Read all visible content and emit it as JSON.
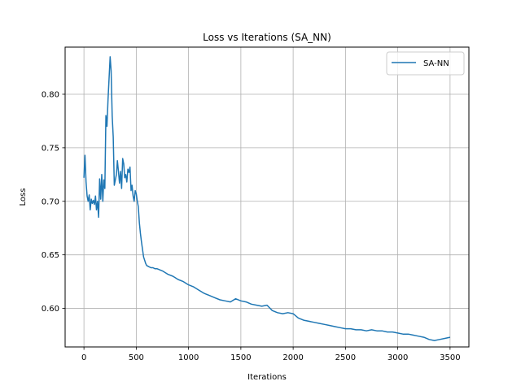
{
  "chart_data": {
    "type": "line",
    "title": "Loss vs Iterations (SA_NN)",
    "xlabel": "Iterations",
    "ylabel": "Loss",
    "xlim": [
      -180,
      3680
    ],
    "ylim": [
      0.564,
      0.844
    ],
    "xticks": [
      0,
      500,
      1000,
      1500,
      2000,
      2500,
      3000,
      3500
    ],
    "yticks": [
      0.6,
      0.65,
      0.7,
      0.75,
      0.8
    ],
    "ytick_labels": [
      "0.60",
      "0.65",
      "0.70",
      "0.75",
      "0.80"
    ],
    "grid": true,
    "legend_position": "top-right",
    "series": [
      {
        "name": "SA-NN",
        "color": "#1f77b4",
        "x": [
          0,
          10,
          20,
          30,
          40,
          50,
          60,
          70,
          80,
          90,
          100,
          110,
          120,
          130,
          140,
          150,
          160,
          170,
          180,
          190,
          200,
          210,
          220,
          230,
          240,
          250,
          260,
          270,
          280,
          290,
          300,
          310,
          320,
          330,
          340,
          350,
          360,
          370,
          380,
          390,
          400,
          410,
          420,
          430,
          440,
          450,
          460,
          470,
          480,
          490,
          500,
          510,
          520,
          530,
          540,
          550,
          560,
          570,
          580,
          590,
          600,
          620,
          640,
          660,
          680,
          700,
          750,
          800,
          850,
          900,
          950,
          1000,
          1050,
          1100,
          1150,
          1200,
          1250,
          1300,
          1350,
          1400,
          1450,
          1500,
          1550,
          1600,
          1650,
          1700,
          1750,
          1800,
          1850,
          1900,
          1950,
          2000,
          2050,
          2100,
          2150,
          2200,
          2250,
          2300,
          2350,
          2400,
          2450,
          2500,
          2550,
          2600,
          2650,
          2700,
          2750,
          2800,
          2850,
          2900,
          2950,
          3000,
          3050,
          3100,
          3150,
          3200,
          3250,
          3300,
          3350,
          3400,
          3450,
          3500
        ],
        "y": [
          0.722,
          0.743,
          0.718,
          0.705,
          0.7,
          0.706,
          0.692,
          0.702,
          0.698,
          0.701,
          0.697,
          0.705,
          0.692,
          0.7,
          0.685,
          0.721,
          0.702,
          0.725,
          0.7,
          0.72,
          0.712,
          0.78,
          0.77,
          0.795,
          0.815,
          0.835,
          0.822,
          0.78,
          0.76,
          0.715,
          0.72,
          0.725,
          0.738,
          0.728,
          0.717,
          0.728,
          0.712,
          0.74,
          0.735,
          0.722,
          0.725,
          0.718,
          0.73,
          0.727,
          0.732,
          0.71,
          0.715,
          0.705,
          0.7,
          0.71,
          0.707,
          0.7,
          0.695,
          0.68,
          0.67,
          0.662,
          0.655,
          0.648,
          0.645,
          0.642,
          0.64,
          0.639,
          0.638,
          0.638,
          0.637,
          0.637,
          0.635,
          0.632,
          0.63,
          0.627,
          0.625,
          0.622,
          0.62,
          0.617,
          0.614,
          0.612,
          0.61,
          0.608,
          0.607,
          0.606,
          0.609,
          0.607,
          0.606,
          0.604,
          0.603,
          0.602,
          0.603,
          0.598,
          0.596,
          0.595,
          0.596,
          0.595,
          0.591,
          0.589,
          0.588,
          0.587,
          0.586,
          0.585,
          0.584,
          0.583,
          0.582,
          0.581,
          0.581,
          0.58,
          0.58,
          0.579,
          0.58,
          0.579,
          0.579,
          0.578,
          0.578,
          0.577,
          0.576,
          0.576,
          0.575,
          0.574,
          0.573,
          0.571,
          0.57,
          0.571,
          0.572,
          0.573
        ]
      }
    ]
  }
}
